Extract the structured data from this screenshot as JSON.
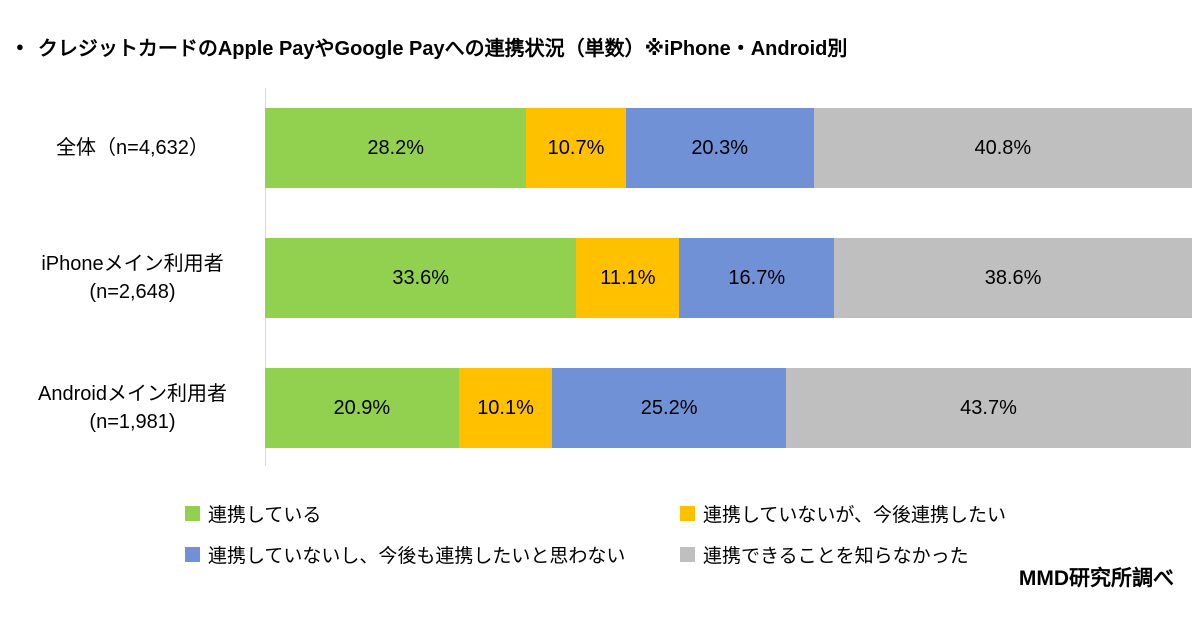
{
  "title": {
    "bullet": "●",
    "text": "クレジットカードのApple PayやGoogle Payへの連携状況（単数）※iPhone・Android別"
  },
  "source": "MMD研究所調べ",
  "chart_data": {
    "type": "bar",
    "stacked": true,
    "orientation": "horizontal",
    "value_suffix": "%",
    "xlim": [
      0,
      100
    ],
    "grid": false,
    "legend_position": "bottom",
    "categories": [
      {
        "lines": [
          "全体（n=4,632）"
        ]
      },
      {
        "lines": [
          "iPhoneメイン利用者",
          "(n=2,648)"
        ]
      },
      {
        "lines": [
          "Androidメイン利用者",
          "(n=1,981)"
        ]
      }
    ],
    "series": [
      {
        "name": "連携している",
        "color": "#92D050",
        "values": [
          28.2,
          33.6,
          20.9
        ]
      },
      {
        "name": "連携していないが、今後連携したい",
        "color": "#FFC000",
        "values": [
          10.7,
          11.1,
          10.1
        ]
      },
      {
        "name": "連携していないし、今後も連携したいと思わない",
        "color": "#7191D6",
        "values": [
          20.3,
          16.7,
          25.2
        ]
      },
      {
        "name": "連携できることを知らなかった",
        "color": "#BFBFBF",
        "values": [
          40.8,
          38.6,
          43.7
        ]
      }
    ]
  }
}
